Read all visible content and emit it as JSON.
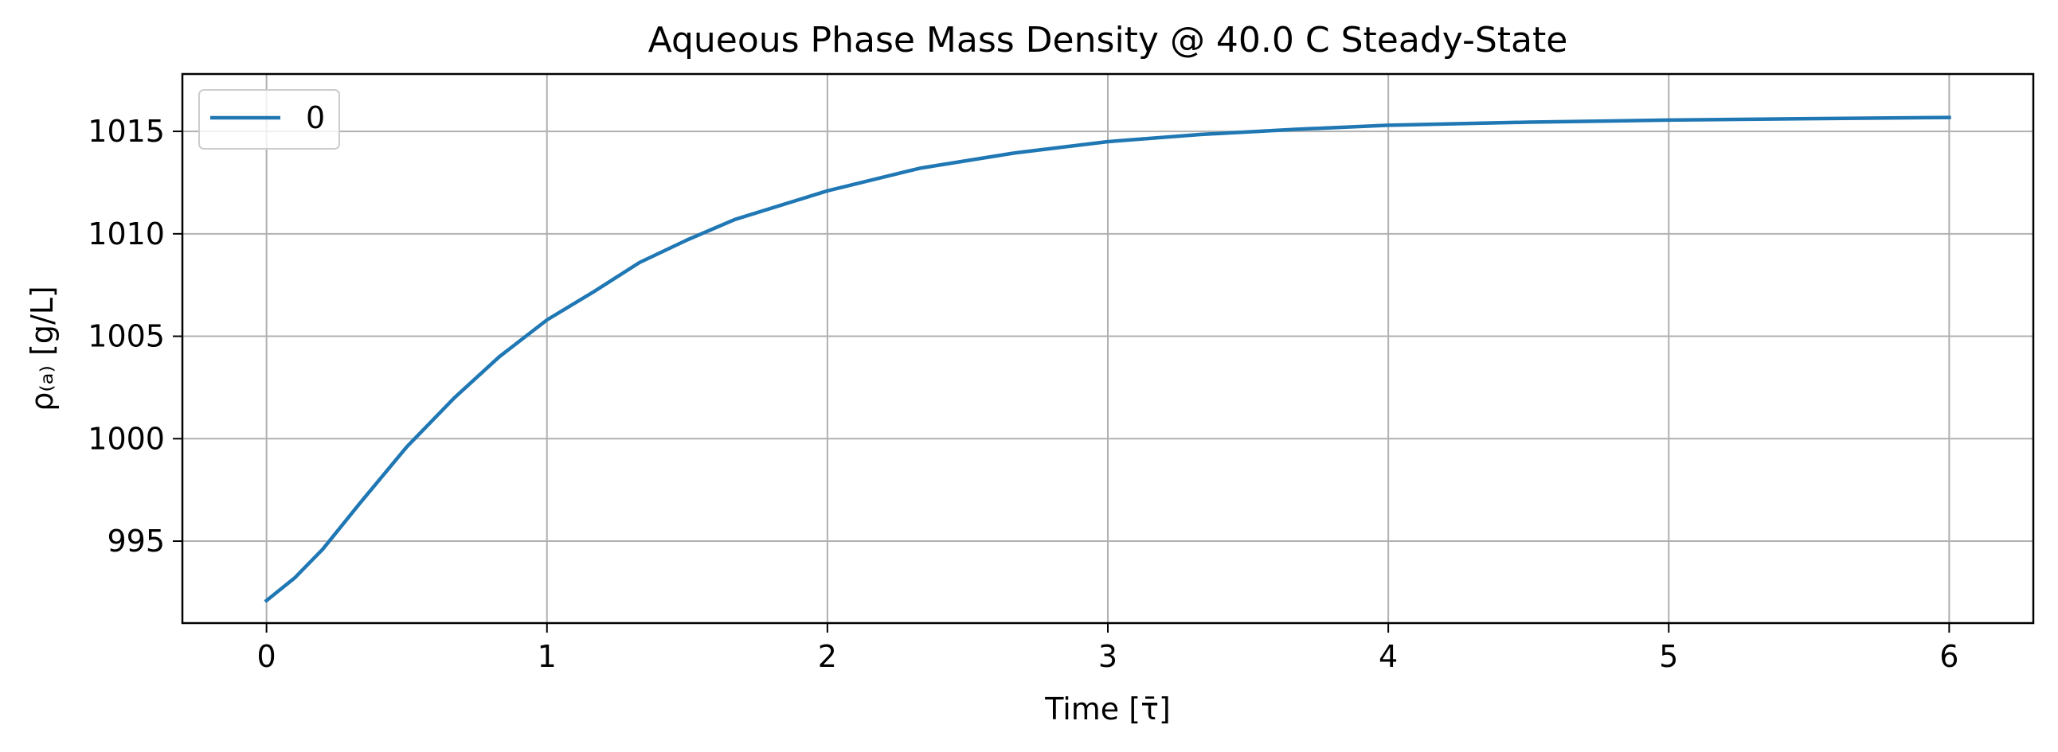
{
  "chart_data": {
    "type": "line",
    "title": "Aqueous Phase Mass Density @ 40.0 C Steady-State",
    "xlabel": "Time [τ̄]",
    "ylabel": "ρ₍ₐ₎ [g/L]",
    "xlim": [
      -0.3,
      6.3
    ],
    "ylim": [
      991.0,
      1017.8
    ],
    "xticks": [
      0,
      1,
      2,
      3,
      4,
      5,
      6
    ],
    "yticks": [
      995,
      1000,
      1005,
      1010,
      1015
    ],
    "grid": true,
    "legend_position": "upper-left",
    "series": [
      {
        "name": "0",
        "color": "#1f77b4",
        "x": [
          0,
          0.1,
          0.2,
          0.33,
          0.5,
          0.67,
          0.83,
          1.0,
          1.17,
          1.33,
          1.5,
          1.67,
          2.0,
          2.33,
          2.67,
          3.0,
          3.33,
          3.67,
          4.0,
          4.5,
          5.0,
          5.5,
          6.0
        ],
        "y": [
          992.1,
          993.2,
          994.6,
          996.8,
          999.6,
          1002.0,
          1004.0,
          1005.8,
          1007.2,
          1008.6,
          1009.7,
          1010.7,
          1012.1,
          1013.2,
          1013.95,
          1014.5,
          1014.85,
          1015.1,
          1015.3,
          1015.45,
          1015.55,
          1015.62,
          1015.68
        ]
      }
    ]
  }
}
